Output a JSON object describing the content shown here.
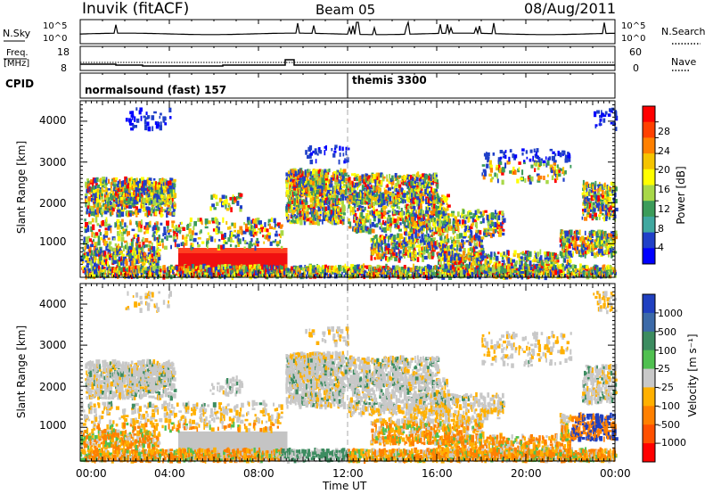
{
  "header": {
    "title": "Inuvik (fitACF)",
    "beam": "Beam 05",
    "date": "08/Aug/2011"
  },
  "panels": {
    "nsky_label": "N.Sky",
    "nsky_ticks": [
      "10^5",
      "10^0"
    ],
    "nsearch_label": "N.Search",
    "freq_label_1": "Freq.",
    "freq_label_2": "[MHz]",
    "freq_ticks": [
      "18",
      "8"
    ],
    "nave_ticks": [
      "60",
      "0"
    ],
    "nave_label": "Nave",
    "cpid_label": "CPID",
    "cpid_segments": [
      "normalsound (fast) 157",
      "themis 3300"
    ]
  },
  "power_colorbar": {
    "title": "Power [dB]",
    "ticks": [
      "28",
      "24",
      "20",
      "16",
      "12",
      "8",
      "4"
    ],
    "colors": [
      "#ff0000",
      "#ff4000",
      "#ff8000",
      "#f5c400",
      "#ffff00",
      "#a8d848",
      "#3c9c5a",
      "#40a8a0",
      "#2040c8",
      "#0000ff"
    ]
  },
  "velocity_colorbar": {
    "title": "Velocity [m s⁻¹]",
    "ticks": [
      "1000",
      "500",
      "100",
      "25",
      "-25",
      "-100",
      "-500",
      "-1000"
    ],
    "colors": [
      "#2040c0",
      "#3c6aa8",
      "#3c8c60",
      "#50c050",
      "#c8c8c8",
      "#ffb000",
      "#ff8000",
      "#ff5000",
      "#ff0000"
    ]
  },
  "chart_data": [
    {
      "type": "heatmap",
      "panel": "power",
      "ylabel": "Slant Range [km]",
      "yticks": [
        "4000",
        "3000",
        "2000",
        "1000"
      ],
      "ylim": [
        180,
        4500
      ],
      "xlim_hours": [
        0,
        24
      ],
      "zlabel": "Power [dB]",
      "zlim": [
        0,
        30
      ]
    },
    {
      "type": "heatmap",
      "panel": "velocity",
      "ylabel": "Slant Range [km]",
      "yticks": [
        "4000",
        "3000",
        "2000",
        "1000"
      ],
      "ylim": [
        180,
        4500
      ],
      "xlim_hours": [
        0,
        24
      ],
      "xlabel": "Time UT",
      "xticks": [
        "00:00",
        "04:00",
        "08:00",
        "12:00",
        "16:00",
        "20:00",
        "00:00"
      ],
      "zlabel": "Velocity [m s⁻¹]",
      "zlim": [
        -1000,
        1000
      ]
    }
  ]
}
